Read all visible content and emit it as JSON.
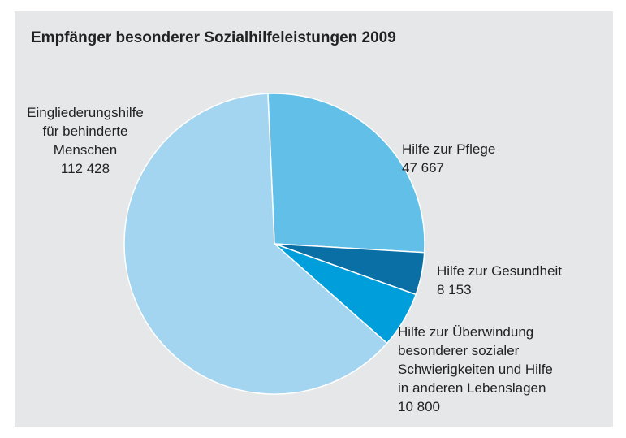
{
  "chart_data": {
    "type": "pie",
    "title": "Empfänger besonderer Sozialhilfeleistungen 2009",
    "categories": [
      "Hilfe zur Pflege",
      "Hilfe zur Gesundheit",
      "Hilfe zur Überwindung\nbesonderer sozialer\nSchwierigkeiten und Hilfe\nin anderen Lebenslagen",
      "Eingliederungshilfe\nfür behinderte\nMenschen"
    ],
    "values": [
      47667,
      8153,
      10800,
      112428
    ],
    "value_labels": [
      "47 667",
      "8 153",
      "10 800",
      "112 428"
    ],
    "colors": [
      "#62c0e8",
      "#0a6fa5",
      "#009fdc",
      "#a3d4f0"
    ]
  }
}
